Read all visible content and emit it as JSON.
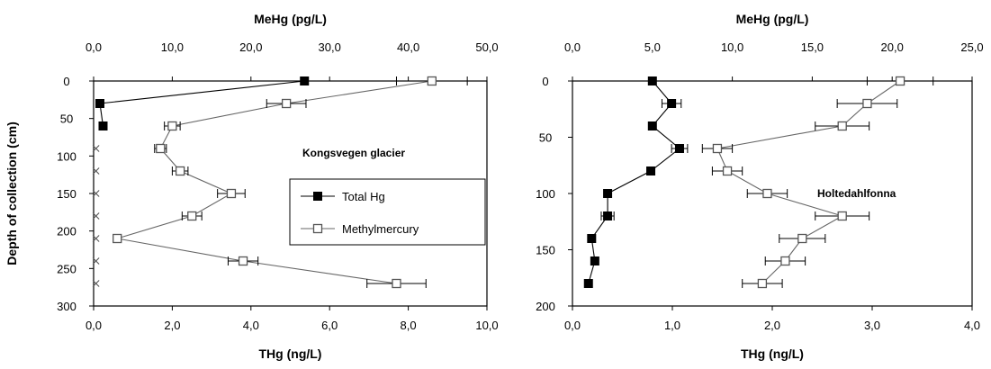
{
  "chart_data": [
    {
      "type": "scatter",
      "orientation": "depth-profile",
      "ylabel": "Depth of collection (cm)",
      "y_inverted": true,
      "ylim": [
        0,
        300
      ],
      "yticks": [
        0,
        50,
        100,
        150,
        200,
        250,
        300
      ],
      "ytick_labels": [
        "0",
        "50",
        "100",
        "150",
        "200",
        "250",
        "300"
      ],
      "xlabel_top": "MeHg (pg/L)",
      "xlim_top": [
        0,
        50
      ],
      "xticks_top": [
        "0,0",
        "10,0",
        "20,0",
        "30,0",
        "40,0",
        "50,0"
      ],
      "xlabel_bottom": "THg (ng/L)",
      "xlim_bottom": [
        0,
        10
      ],
      "xticks_bottom": [
        "0,0",
        "2,0",
        "4,0",
        "6,0",
        "8,0",
        "10,0"
      ],
      "annotation": "Kongsvegen glacier",
      "legend": {
        "placement": "middle-right",
        "entries": [
          {
            "label": "Total Hg",
            "marker": "filled-square"
          },
          {
            "label": "Methylmercury",
            "marker": "open-square"
          }
        ]
      },
      "series": [
        {
          "name": "Total Hg",
          "axis": "top",
          "marker": "filled-square",
          "depth": [
            0,
            30,
            60
          ],
          "values": [
            26.8,
            0.8,
            1.2
          ]
        },
        {
          "name": "Total Hg",
          "axis": "top",
          "marker": "x",
          "depth": [
            90,
            120,
            150,
            180,
            210,
            240,
            270
          ],
          "values": [
            0.3,
            0.3,
            0.3,
            0.3,
            0.3,
            0.3,
            0.3
          ]
        },
        {
          "name": "Methylmercury",
          "axis": "bottom",
          "marker": "open-square",
          "depth": [
            0,
            30,
            60,
            90,
            120,
            150,
            180,
            210,
            240,
            270
          ],
          "values": [
            8.6,
            4.9,
            2.0,
            1.7,
            2.2,
            3.5,
            2.5,
            0.6,
            3.8,
            7.7
          ],
          "error": [
            0.9,
            0.5,
            0.2,
            0.15,
            0.2,
            0.35,
            0.25,
            0.06,
            0.38,
            0.75
          ]
        }
      ]
    },
    {
      "type": "scatter",
      "orientation": "depth-profile",
      "ylabel": "",
      "y_inverted": true,
      "ylim": [
        0,
        200
      ],
      "yticks": [
        0,
        50,
        100,
        150,
        200
      ],
      "ytick_labels": [
        "0",
        "50",
        "100",
        "150",
        "200"
      ],
      "xlabel_top": "MeHg (pg/L)",
      "xlim_top": [
        0,
        25
      ],
      "xticks_top": [
        "0,0",
        "5,0",
        "10,0",
        "15,0",
        "20,0",
        "25,0"
      ],
      "xlabel_bottom": "THg (ng/L)",
      "xlim_bottom": [
        0,
        4
      ],
      "xticks_bottom": [
        "0,0",
        "1,0",
        "2,0",
        "3,0",
        "4,0"
      ],
      "annotation": "Holtedahlfonna",
      "series": [
        {
          "name": "Total Hg",
          "axis": "top",
          "marker": "filled-square",
          "depth": [
            0,
            20,
            40,
            60,
            80,
            100,
            120,
            140,
            160,
            180
          ],
          "values": [
            5.0,
            6.2,
            5.0,
            6.7,
            4.9,
            2.2,
            2.2,
            1.2,
            1.4,
            1.0
          ],
          "error": [
            0,
            0.6,
            0,
            0.5,
            0,
            0,
            0.4,
            0,
            0,
            0
          ]
        },
        {
          "name": "Methylmercury",
          "axis": "bottom",
          "marker": "open-square",
          "depth": [
            0,
            20,
            40,
            60,
            80,
            100,
            120,
            140,
            160,
            180
          ],
          "values": [
            3.28,
            2.95,
            2.7,
            1.45,
            1.55,
            1.95,
            2.7,
            2.3,
            2.13,
            1.9
          ],
          "error": [
            0.33,
            0.3,
            0.27,
            0.15,
            0.15,
            0.2,
            0.27,
            0.23,
            0.2,
            0.2
          ]
        }
      ]
    }
  ]
}
